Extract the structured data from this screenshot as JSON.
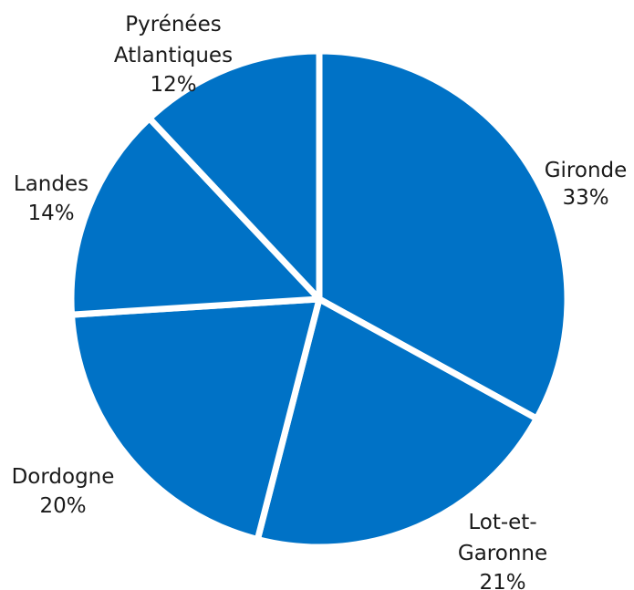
{
  "chart_data": {
    "type": "pie",
    "slices": [
      {
        "label": "Gironde",
        "value": 33,
        "value_label": "33%"
      },
      {
        "label": "Lot-et-Garonne",
        "value": 21,
        "value_label": "21%"
      },
      {
        "label": "Dordogne",
        "value": 20,
        "value_label": "20%"
      },
      {
        "label": "Landes",
        "value": 14,
        "value_label": "14%"
      },
      {
        "label": "Pyrénées Atlantiques",
        "value": 12,
        "value_label": "12%"
      }
    ],
    "slice_color": "#0072C6",
    "separator_color": "#ffffff",
    "legend": "none",
    "start": "top",
    "direction": "clockwise"
  }
}
